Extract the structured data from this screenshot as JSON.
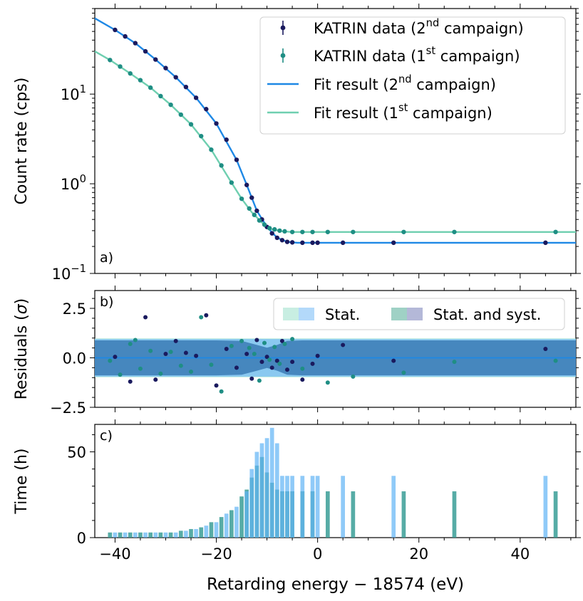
{
  "chart_data": [
    {
      "type": "scatter",
      "panel_label": "a)",
      "ylabel": "Count rate (cps)",
      "yscale": "log",
      "ylim": [
        0.1,
        90
      ],
      "xlim": [
        -44,
        51
      ],
      "yticks": [
        0.1,
        1,
        10
      ],
      "ytick_labels": [
        {
          "base": "10",
          "exp": "−1"
        },
        {
          "base": "10",
          "exp": "0"
        },
        {
          "base": "10",
          "exp": "1"
        }
      ],
      "series": [
        {
          "name": "KATRIN data (2nd campaign)",
          "legend": {
            "pre": "KATRIN data (2",
            "sup": "nd",
            "post": " campaign)"
          },
          "color": "#1a1a5e",
          "x": [
            -40,
            -38,
            -36,
            -34,
            -32,
            -30,
            -28,
            -26,
            -24,
            -22,
            -20,
            -18,
            -16,
            -14,
            -13,
            -12,
            -11,
            -10,
            -9,
            -8,
            -7,
            -6,
            -5,
            -3,
            -1,
            0,
            5,
            15,
            45
          ],
          "y": [
            52,
            44,
            37,
            30,
            24.3,
            19.5,
            15.4,
            12,
            9.1,
            6.8,
            4.7,
            3.1,
            1.85,
            0.97,
            0.7,
            0.5,
            0.4,
            0.33,
            0.28,
            0.25,
            0.235,
            0.225,
            0.222,
            0.22,
            0.22,
            0.22,
            0.22,
            0.22,
            0.22
          ]
        },
        {
          "name": "KATRIN data (1st campaign)",
          "legend": {
            "pre": "KATRIN data (1",
            "sup": "st",
            "post": " campaign)"
          },
          "color": "#1f8e84",
          "x": [
            -41,
            -39,
            -37,
            -35,
            -33,
            -31,
            -29,
            -27,
            -25,
            -23,
            -21,
            -19,
            -17,
            -15,
            -13.5,
            -12.5,
            -11.5,
            -10.5,
            -9.5,
            -8.5,
            -7.5,
            -6.5,
            -5,
            -3,
            -1,
            2,
            7,
            17,
            27,
            47
          ],
          "y": [
            24,
            20.3,
            17,
            14.3,
            11.8,
            9.5,
            7.6,
            5.9,
            4.6,
            3.4,
            2.4,
            1.6,
            1.03,
            0.68,
            0.53,
            0.45,
            0.39,
            0.35,
            0.32,
            0.31,
            0.3,
            0.295,
            0.29,
            0.29,
            0.29,
            0.29,
            0.29,
            0.29,
            0.29,
            0.29
          ]
        },
        {
          "name": "Fit result (2nd campaign)",
          "legend": {
            "pre": "Fit result (2",
            "sup": "nd",
            "post": " campaign)"
          },
          "color": "#1e88e5",
          "x": [
            -44,
            -40,
            -36,
            -32,
            -28,
            -24,
            -20,
            -16,
            -14,
            -12,
            -10,
            -8,
            -6,
            -4,
            0,
            51
          ],
          "y": [
            70,
            52,
            37,
            24.3,
            15.4,
            9.1,
            4.7,
            1.85,
            0.97,
            0.5,
            0.33,
            0.25,
            0.225,
            0.22,
            0.22,
            0.22
          ]
        },
        {
          "name": "Fit result (1st campaign)",
          "legend": {
            "pre": "Fit result (1",
            "sup": "st",
            "post": " campaign)"
          },
          "color": "#6fcfb0",
          "x": [
            -44,
            -41,
            -37,
            -33,
            -29,
            -25,
            -21,
            -17,
            -15,
            -13,
            -11,
            -9,
            -7,
            -5,
            0,
            51
          ],
          "y": [
            30,
            24,
            17,
            11.8,
            7.6,
            4.6,
            2.4,
            1.03,
            0.68,
            0.48,
            0.37,
            0.31,
            0.295,
            0.29,
            0.29,
            0.29
          ]
        }
      ]
    },
    {
      "type": "scatter",
      "panel_label": "b)",
      "ylabel_pre": "Residuals (",
      "ylabel_sym": "σ",
      "ylabel_post": ")",
      "ylim": [
        -2.5,
        3.4
      ],
      "xlim": [
        -44,
        51
      ],
      "yticks": [
        -2.5,
        0,
        2.5
      ],
      "ytick_labels": [
        "−2.5",
        "0.0",
        "2.5"
      ],
      "legend": [
        "Stat.",
        "Stat. and syst."
      ],
      "band_stat": 0.95,
      "band_syst": {
        "x": [
          -44,
          -20,
          -15,
          -12,
          -10,
          -8,
          -6,
          -3,
          51
        ],
        "half": [
          0.95,
          0.95,
          0.92,
          0.7,
          0.55,
          0.7,
          0.92,
          0.95,
          0.95
        ]
      },
      "series": [
        {
          "name": "2nd campaign residuals",
          "color": "#1a1a5e",
          "x": [
            -40,
            -37,
            -34,
            -32,
            -30,
            -28,
            -26,
            -24,
            -22,
            -20,
            -18,
            -16,
            -14,
            -13,
            -12,
            -11,
            -10,
            -9,
            -8,
            -7,
            -6,
            -5,
            -3,
            -1,
            0,
            5,
            15,
            45
          ],
          "y": [
            0.05,
            -1.2,
            2.05,
            -1.1,
            0.2,
            0.85,
            0.25,
            0.1,
            2.15,
            -1.4,
            0.45,
            -0.5,
            0.2,
            -1.05,
            0.9,
            -0.2,
            0.05,
            -0.5,
            -0.15,
            0.85,
            -0.6,
            -0.2,
            -1.1,
            -0.3,
            0.1,
            0.65,
            -0.15,
            0.45
          ]
        },
        {
          "name": "1st campaign residuals",
          "color": "#1f8e84",
          "x": [
            -41,
            -39,
            -37,
            -36,
            -35,
            -33,
            -31,
            -29,
            -27,
            -25,
            -23,
            -21,
            -19,
            -17,
            -15,
            -13.5,
            -12.5,
            -11.5,
            -10.5,
            -9.5,
            -8.5,
            -7.5,
            -6.5,
            -5,
            -3,
            2,
            7,
            17,
            27,
            47
          ],
          "y": [
            -0.15,
            -0.85,
            0.7,
            0.9,
            -0.55,
            0.35,
            -0.8,
            0.3,
            -0.4,
            -0.7,
            2.05,
            -0.35,
            -1.7,
            0.6,
            0.85,
            0.5,
            0.2,
            -1.15,
            0.75,
            -0.1,
            0.55,
            -0.3,
            0.7,
            0.95,
            -0.55,
            -1.25,
            -0.95,
            -0.75,
            -0.2,
            -0.15
          ]
        }
      ]
    },
    {
      "type": "bar",
      "panel_label": "c)",
      "ylabel": "Time (h)",
      "xlabel": "Retarding energy − 18574 (eV)",
      "ylim": [
        0,
        66
      ],
      "xlim": [
        -44,
        51
      ],
      "yticks": [
        0,
        50
      ],
      "xticks": [
        -40,
        -20,
        0,
        20,
        40
      ],
      "xtick_labels": [
        "−40",
        "−20",
        "0",
        "20",
        "40"
      ],
      "series": [
        {
          "name": "1st campaign",
          "color": "#3a9e96",
          "x": [
            -41,
            -39,
            -37,
            -35,
            -33,
            -31,
            -29,
            -27,
            -25,
            -23,
            -21,
            -19,
            -17,
            -15,
            -14,
            -13,
            -12,
            -11,
            -10,
            -9,
            -8,
            -7,
            -6,
            -5,
            -3,
            -1,
            2,
            7,
            17,
            27,
            47
          ],
          "values": [
            3,
            3,
            3,
            3,
            3,
            3,
            3,
            4,
            5,
            6,
            9,
            12,
            16,
            24,
            28,
            35,
            42,
            47,
            38,
            32,
            28,
            27,
            27,
            27,
            27,
            27,
            27,
            27,
            27,
            27,
            27
          ]
        },
        {
          "name": "2nd campaign",
          "color": "#5fb3f5",
          "x": [
            -40,
            -38,
            -36,
            -34,
            -32,
            -30,
            -28,
            -26,
            -24,
            -22,
            -20,
            -18,
            -16,
            -14,
            -13,
            -12,
            -11,
            -10,
            -9,
            -8,
            -7,
            -6,
            -5,
            -3,
            -1,
            0,
            5,
            15,
            45
          ],
          "values": [
            3,
            3,
            3,
            3,
            3,
            3,
            3,
            4,
            5,
            7,
            9,
            14,
            18,
            27,
            40,
            50,
            55,
            58,
            64,
            55,
            36,
            36,
            36,
            36,
            36,
            36,
            36,
            36,
            36
          ]
        }
      ]
    }
  ]
}
